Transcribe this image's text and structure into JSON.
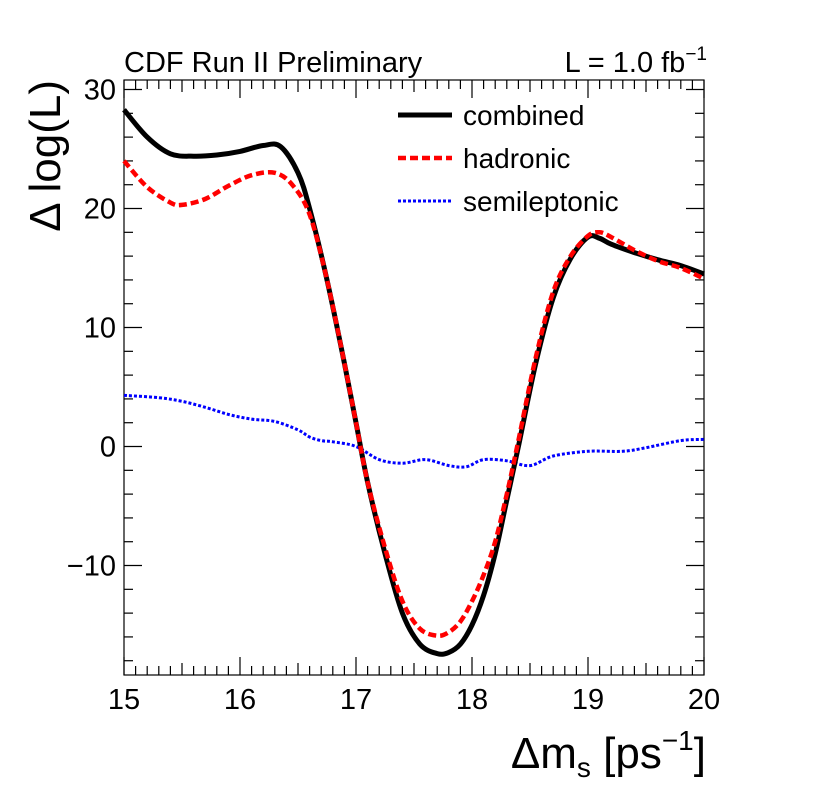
{
  "chart_data": {
    "type": "line",
    "header_left": "CDF Run II Preliminary",
    "lumi": {
      "prefix": "L = 1.0 fb",
      "sup": "−1"
    },
    "xlabel": {
      "main": "Δm",
      "sub": "s",
      "mid": " [ps",
      "sup": "−1",
      "end": "]"
    },
    "ylabel": "Δ log(L)",
    "xlim": [
      15,
      20
    ],
    "ylim": [
      -19.2,
      30.8
    ],
    "x_ticks": [
      15,
      16,
      17,
      18,
      19,
      20
    ],
    "x_tick_labels": [
      "15",
      "16",
      "17",
      "18",
      "19",
      "20"
    ],
    "y_ticks": [
      -10,
      0,
      10,
      20,
      30
    ],
    "y_tick_labels": [
      "−10",
      "0",
      "10",
      "20",
      "30"
    ],
    "legend_position": "top-right",
    "series": [
      {
        "name": "combined",
        "color": "#000000",
        "style": "solid",
        "x": [
          15.0,
          15.2,
          15.4,
          15.6,
          15.8,
          16.0,
          16.2,
          16.35,
          16.5,
          16.6,
          16.75,
          16.9,
          17.0,
          17.1,
          17.25,
          17.4,
          17.55,
          17.7,
          17.8,
          17.9,
          18.0,
          18.1,
          18.2,
          18.3,
          18.4,
          18.55,
          18.7,
          18.85,
          19.0,
          19.1,
          19.2,
          19.4,
          19.6,
          19.8,
          20.0
        ],
        "values": [
          28.3,
          26.0,
          24.6,
          24.4,
          24.5,
          24.8,
          25.3,
          25.2,
          23.0,
          20.0,
          14.0,
          7.0,
          2.0,
          -3.0,
          -9.0,
          -14.0,
          -16.6,
          -17.4,
          -17.3,
          -16.6,
          -15.0,
          -12.5,
          -9.0,
          -4.5,
          0.0,
          7.0,
          12.5,
          15.8,
          17.6,
          17.5,
          17.0,
          16.3,
          15.7,
          15.2,
          14.5
        ]
      },
      {
        "name": "hadronic",
        "color": "#ff0000",
        "style": "dashed",
        "x": [
          15.0,
          15.2,
          15.4,
          15.5,
          15.7,
          15.9,
          16.1,
          16.3,
          16.45,
          16.6,
          16.75,
          16.9,
          17.0,
          17.1,
          17.25,
          17.4,
          17.55,
          17.7,
          17.8,
          17.9,
          18.0,
          18.1,
          18.2,
          18.3,
          18.4,
          18.55,
          18.7,
          18.85,
          19.0,
          19.1,
          19.2,
          19.4,
          19.6,
          19.8,
          20.0
        ],
        "values": [
          24.0,
          21.8,
          20.5,
          20.3,
          20.8,
          21.9,
          22.8,
          23.0,
          22.0,
          19.5,
          14.0,
          7.0,
          2.0,
          -3.0,
          -8.5,
          -13.0,
          -15.3,
          -15.9,
          -15.6,
          -14.7,
          -13.0,
          -10.8,
          -8.0,
          -4.0,
          0.5,
          7.5,
          13.0,
          16.0,
          17.7,
          18.0,
          17.6,
          16.5,
          15.6,
          15.0,
          14.1
        ]
      },
      {
        "name": "semileptonic",
        "color": "#0000ff",
        "style": "dotted",
        "x": [
          15.0,
          15.3,
          15.5,
          15.7,
          15.9,
          16.1,
          16.3,
          16.5,
          16.6,
          16.7,
          16.8,
          17.0,
          17.2,
          17.4,
          17.6,
          17.8,
          17.95,
          18.1,
          18.3,
          18.5,
          18.7,
          19.0,
          19.3,
          19.5,
          19.8,
          20.0
        ],
        "values": [
          4.3,
          4.1,
          3.8,
          3.3,
          2.7,
          2.3,
          2.1,
          1.4,
          0.8,
          0.5,
          0.4,
          0.0,
          -1.1,
          -1.4,
          -1.1,
          -1.6,
          -1.7,
          -1.1,
          -1.2,
          -1.6,
          -0.8,
          -0.4,
          -0.4,
          -0.1,
          0.5,
          0.6
        ]
      }
    ]
  }
}
